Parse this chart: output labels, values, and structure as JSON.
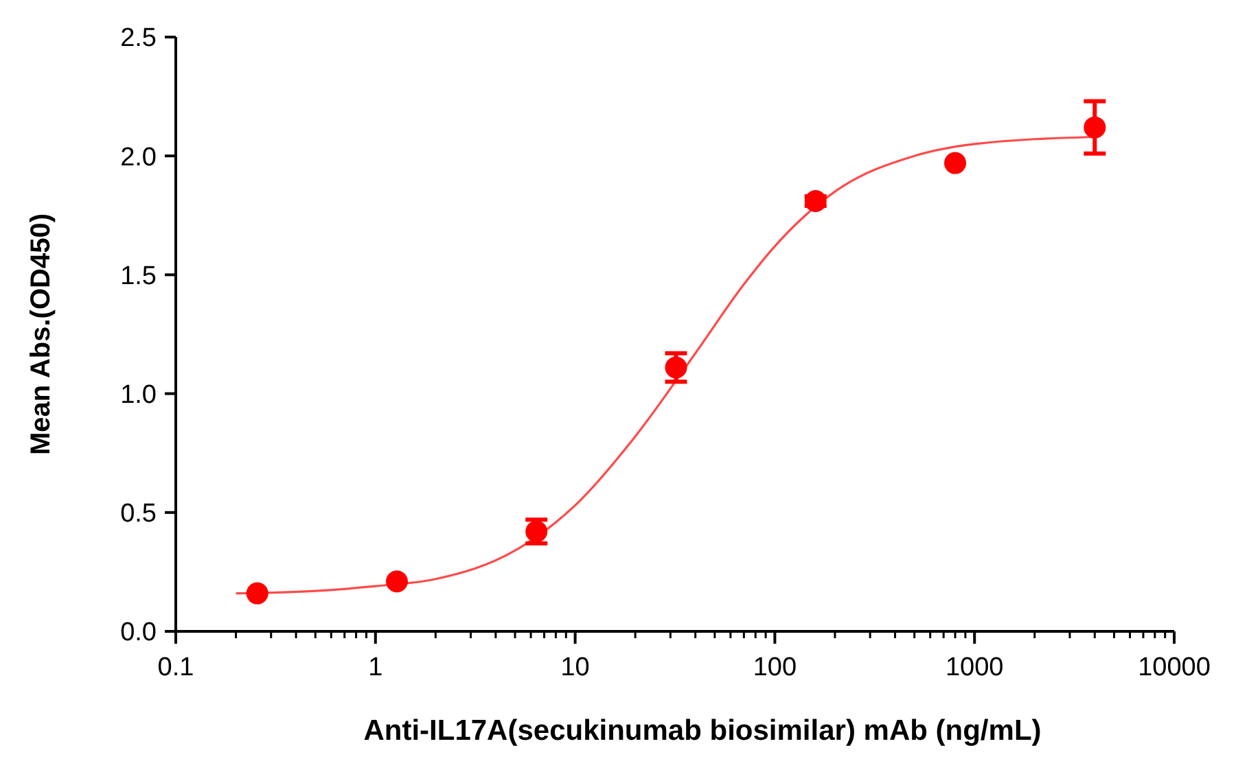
{
  "chart_data": {
    "type": "scatter",
    "xlabel": "Anti-IL17A(secukinumab biosimilar) mAb (ng/mL)",
    "ylabel": "Mean Abs.(OD450)",
    "log": "x",
    "xlim": [
      0.1,
      10000
    ],
    "ylim": [
      0,
      2.5
    ],
    "xticks": [
      0.1,
      1,
      10,
      100,
      1000,
      10000
    ],
    "yticks": [
      {
        "value": 0,
        "label": "0.0"
      },
      {
        "value": 0.5,
        "label": "0.5"
      },
      {
        "value": 1,
        "label": "1.0"
      },
      {
        "value": 1.5,
        "label": "1.5"
      },
      {
        "value": 2,
        "label": "2.0"
      },
      {
        "value": 2.5,
        "label": "2.5"
      }
    ],
    "grid": false,
    "series": [
      {
        "type": "line",
        "marker": "none",
        "color": "#ff4a4a",
        "x": [
          0.2,
          0.5,
          1,
          2,
          5,
          10,
          20,
          40,
          70,
          100,
          200,
          500,
          1000,
          4000
        ],
        "values": [
          0.16,
          0.17,
          0.19,
          0.22,
          0.34,
          0.53,
          0.82,
          1.17,
          1.46,
          1.62,
          1.85,
          2.0,
          2.05,
          2.08
        ]
      },
      {
        "marker": "circle",
        "color": "#ff0000",
        "x": [
          0.256,
          1.28,
          6.4,
          32,
          160,
          800,
          4000
        ],
        "values": [
          0.16,
          0.21,
          0.42,
          1.11,
          1.81,
          1.97,
          2.12
        ],
        "errors": [
          null,
          null,
          0.05,
          0.06,
          0.02,
          null,
          0.11
        ]
      }
    ]
  }
}
